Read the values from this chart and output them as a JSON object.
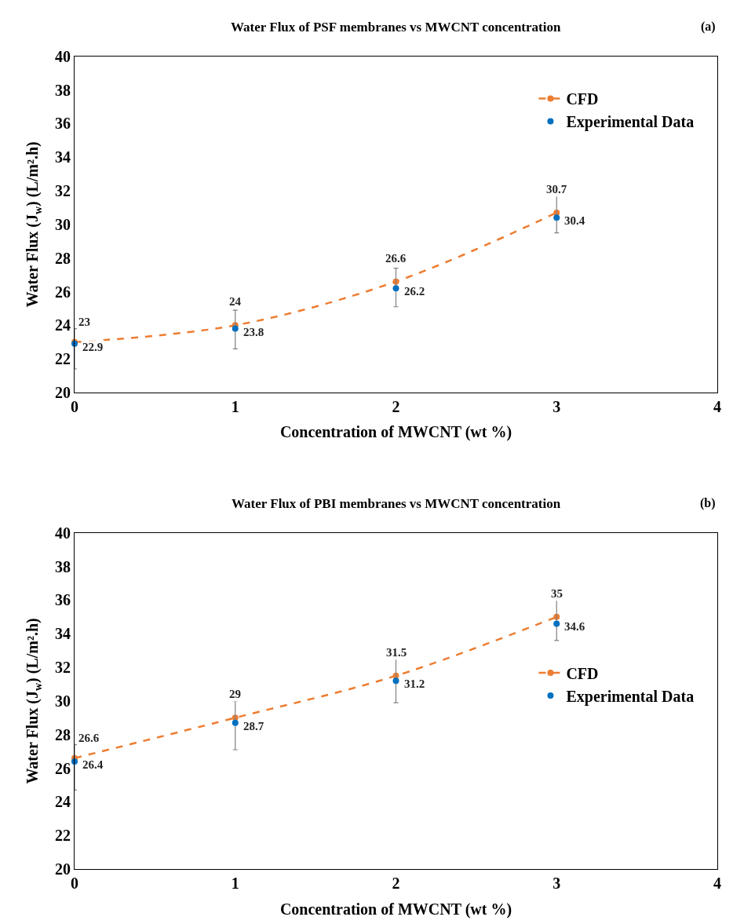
{
  "chart_data": [
    {
      "type": "line",
      "title": "Water Flux of PSF membranes vs MWCNT concentration",
      "xlabel": "Concentration of MWCNT (wt %)",
      "ylabel": "Water Flux (J$_{w}$) (L/m².h)",
      "annotations": [
        "(a)"
      ],
      "x": [
        0,
        1,
        2,
        3
      ],
      "xlim": [
        0,
        4
      ],
      "xticks": [
        0,
        1,
        2,
        3,
        4
      ],
      "ylim": [
        20,
        40
      ],
      "yticks": [
        20,
        22,
        24,
        26,
        28,
        30,
        32,
        34,
        36,
        38,
        40
      ],
      "grid": false,
      "legend": "top right",
      "data_labels": true,
      "series": [
        {
          "name": "CFD",
          "color": "#ed7d31",
          "values": [
            23,
            24,
            26.6,
            30.7
          ],
          "marker": "circle",
          "line_style": "dashed"
        },
        {
          "name": "Experimental Data",
          "type": "scatter",
          "color": "#0070c0",
          "values": [
            22.9,
            23.8,
            26.2,
            30.4
          ],
          "marker": "circle",
          "errors": [
            [
              21.4,
              23.8
            ],
            [
              22.6,
              24.9
            ],
            [
              25.1,
              27.4
            ],
            [
              29.5,
              31.9
            ]
          ]
        }
      ]
    },
    {
      "type": "line",
      "title": "Water Flux of PBI membranes vs MWCNT concentration",
      "xlabel": "Concentration of MWCNT (wt %)",
      "ylabel": "Water Flux (J$_{w}$) (L/m².h)",
      "annotations": [
        "(b)"
      ],
      "x": [
        0,
        1,
        2,
        3
      ],
      "xlim": [
        0,
        4
      ],
      "xticks": [
        0,
        1,
        2,
        3,
        4
      ],
      "ylim": [
        20,
        40
      ],
      "yticks": [
        20,
        22,
        24,
        26,
        28,
        30,
        32,
        34,
        36,
        38,
        40
      ],
      "grid": false,
      "legend": "right",
      "data_labels": true,
      "series": [
        {
          "name": "CFD",
          "color": "#ed7d31",
          "values": [
            26.6,
            29,
            31.5,
            35
          ],
          "marker": "circle",
          "line_style": "dashed"
        },
        {
          "name": "Experimental Data",
          "type": "scatter",
          "color": "#0070c0",
          "values": [
            26.4,
            28.7,
            31.2,
            34.6
          ],
          "marker": "circle",
          "errors": [
            [
              24.7,
              27.4
            ],
            [
              27.1,
              30.0
            ],
            [
              29.9,
              32.8
            ],
            [
              33.6,
              36.3
            ]
          ]
        }
      ]
    }
  ]
}
